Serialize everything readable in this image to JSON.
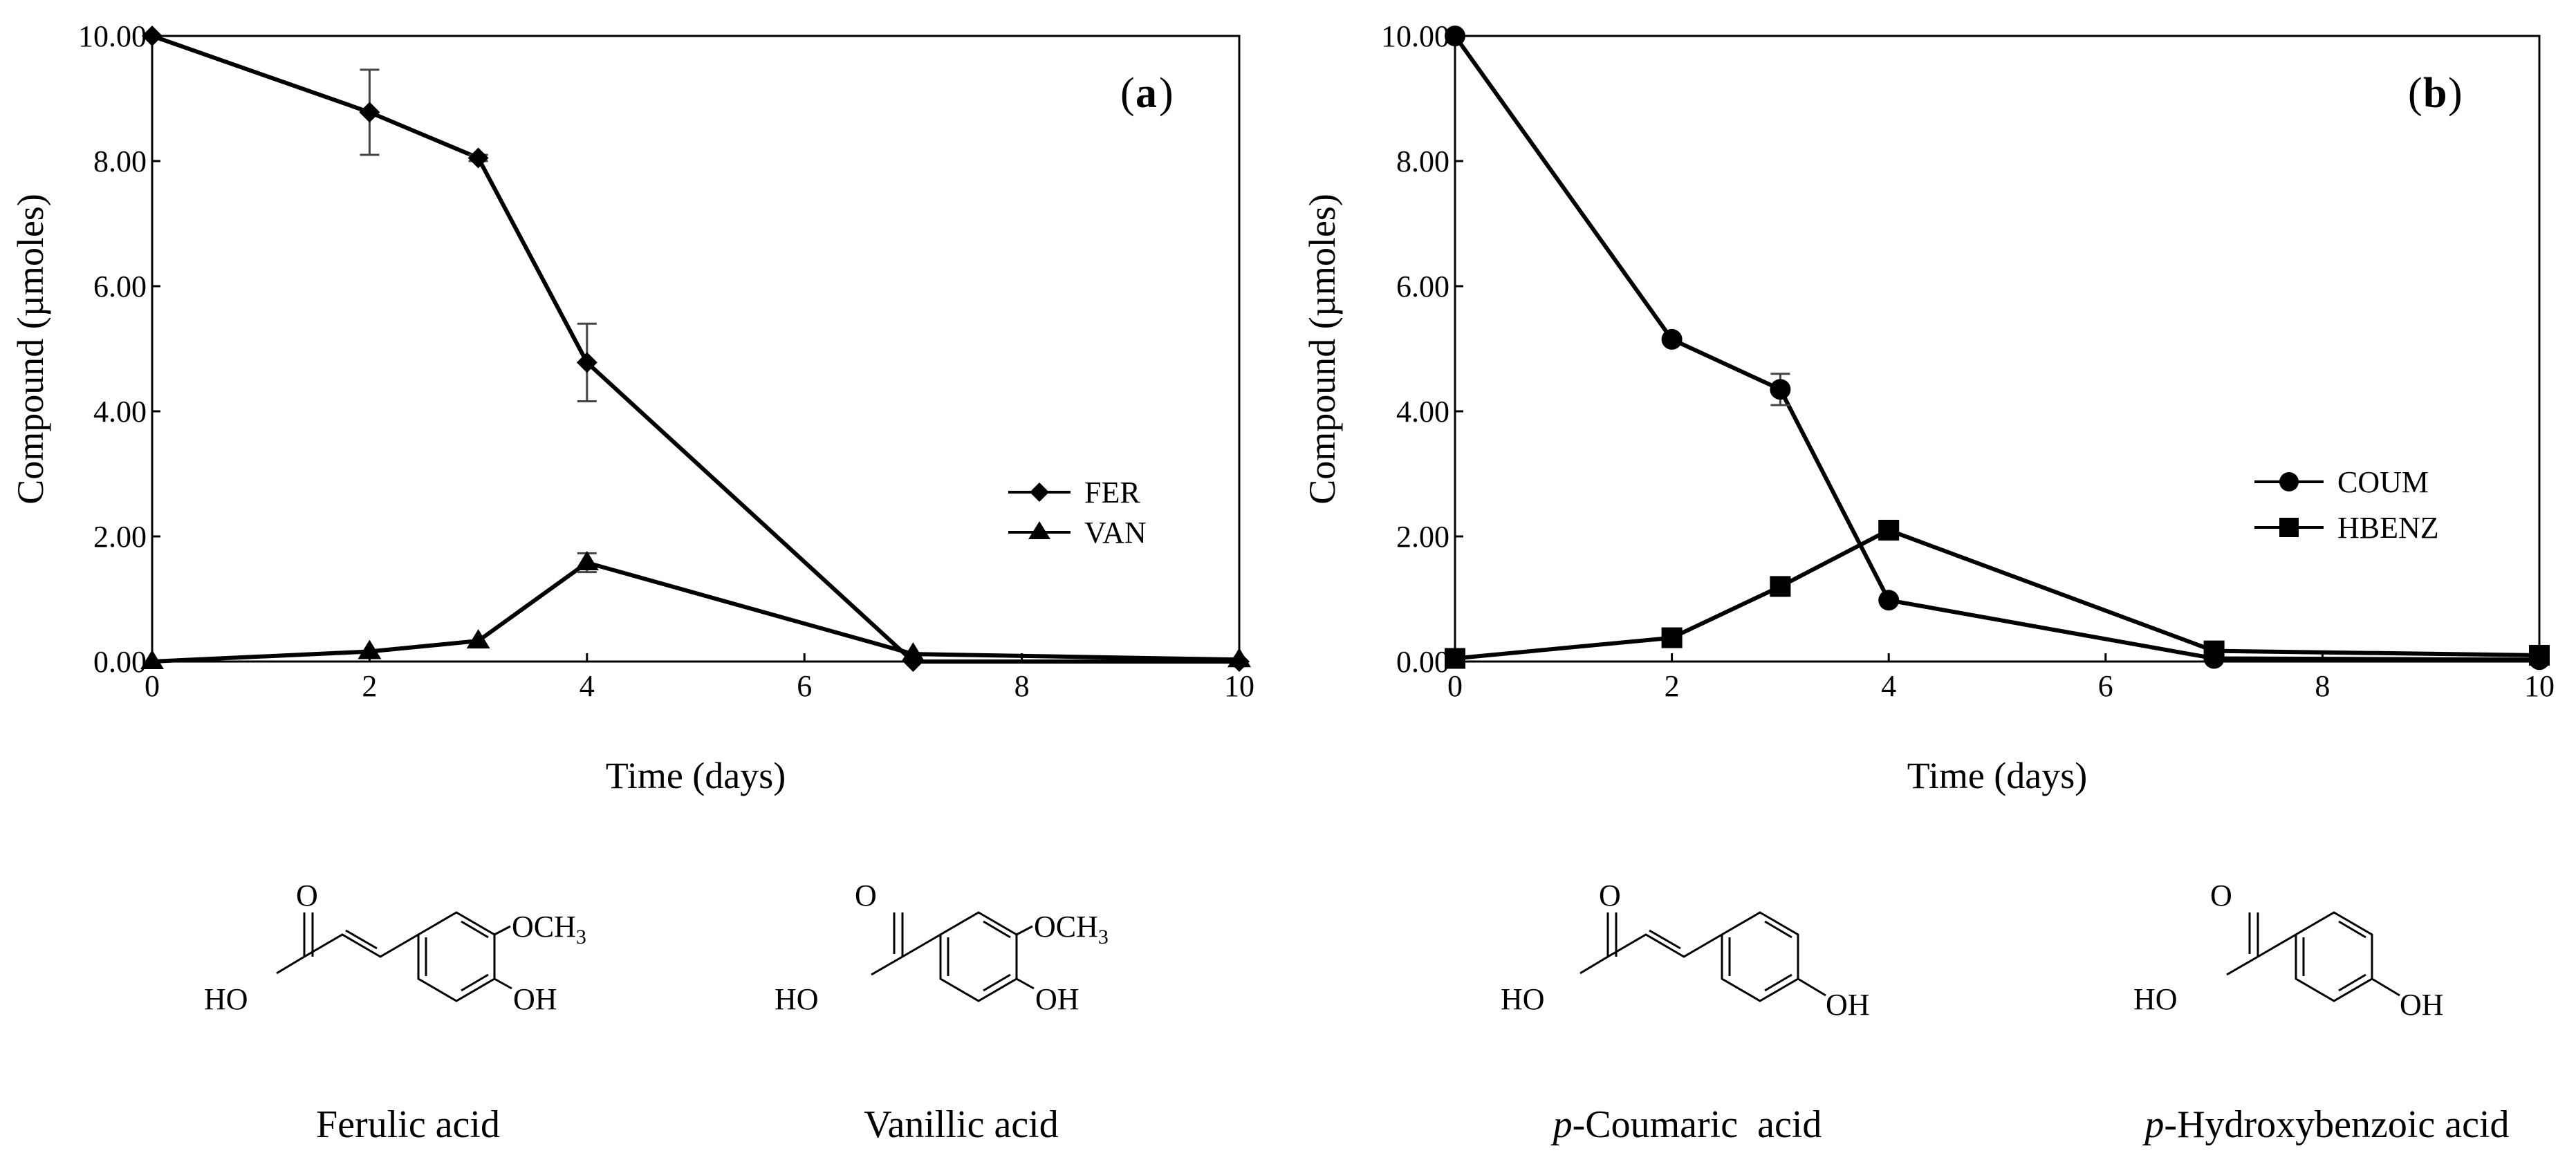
{
  "chart_data": [
    {
      "type": "line",
      "panel_label": "a",
      "xlabel": "Time (days)",
      "ylabel": "Compound (µmoles)",
      "xlim": [
        0,
        10
      ],
      "ylim": [
        0,
        10
      ],
      "x_ticks": [
        "0",
        "2",
        "4",
        "6",
        "8",
        "10"
      ],
      "y_ticks": [
        "0.00",
        "2.00",
        "4.00",
        "6.00",
        "8.00",
        "10.00"
      ],
      "grid": false,
      "legend_position": "right",
      "series": [
        {
          "name": "FER",
          "marker": "diamond",
          "x": [
            0,
            2,
            3,
            4,
            7,
            10
          ],
          "y": [
            10.0,
            8.78,
            8.05,
            4.78,
            0.0,
            0.0
          ],
          "err": [
            0,
            0.68,
            0.05,
            0.62,
            0,
            0
          ]
        },
        {
          "name": "VAN",
          "marker": "triangle",
          "x": [
            0,
            2,
            3,
            4,
            7,
            10
          ],
          "y": [
            0.0,
            0.16,
            0.33,
            1.58,
            0.12,
            0.03
          ],
          "err": [
            0,
            0,
            0,
            0.15,
            0,
            0
          ]
        }
      ]
    },
    {
      "type": "line",
      "panel_label": "b",
      "xlabel": "Time (days)",
      "ylabel": "Compound (µmoles)",
      "xlim": [
        0,
        10
      ],
      "ylim": [
        0,
        10
      ],
      "x_ticks": [
        "0",
        "2",
        "4",
        "6",
        "8",
        "10"
      ],
      "y_ticks": [
        "0.00",
        "2.00",
        "4.00",
        "6.00",
        "8.00",
        "10.00"
      ],
      "grid": false,
      "legend_position": "right",
      "series": [
        {
          "name": "COUM",
          "marker": "circle",
          "x": [
            0,
            2,
            3,
            4,
            7,
            10
          ],
          "y": [
            10.0,
            5.15,
            4.35,
            0.98,
            0.05,
            0.03
          ],
          "err": [
            0,
            0,
            0.25,
            0,
            0,
            0
          ]
        },
        {
          "name": "HBENZ",
          "marker": "square",
          "x": [
            0,
            2,
            3,
            4,
            7,
            10
          ],
          "y": [
            0.05,
            0.38,
            1.2,
            2.1,
            0.17,
            0.1
          ],
          "err": [
            0,
            0,
            0,
            0,
            0,
            0
          ]
        }
      ]
    }
  ],
  "structures": [
    {
      "name_prefix": "",
      "name": "Ferulic acid",
      "ho_label": "HO",
      "o_label": "O",
      "subst_label": "OCH",
      "subst_sub": "3",
      "oh_label": "OH"
    },
    {
      "name_prefix": "",
      "name": "Vanillic acid",
      "ho_label": "HO",
      "o_label": "O",
      "subst_label": "OCH",
      "subst_sub": "3",
      "oh_label": "OH"
    },
    {
      "name_prefix": "p",
      "name": "-Coumaric  acid",
      "ho_label": "HO",
      "o_label": "O",
      "oh_label": "OH"
    },
    {
      "name_prefix": "p",
      "name": "-Hydroxybenzoic acid",
      "ho_label": "HO",
      "o_label": "O",
      "oh_label": "OH"
    }
  ]
}
